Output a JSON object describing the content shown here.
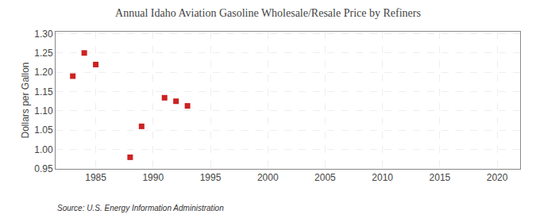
{
  "chart_data": {
    "type": "scatter",
    "title": "Annual Idaho Aviation Gasoline Wholesale/Resale Price by Refiners",
    "ylabel": "Dollars per Gallon",
    "annotations": [
      "Source: U.S. Energy Information Administration"
    ],
    "x": [
      1983,
      1984,
      1985,
      1988,
      1989,
      1991,
      1992,
      1993
    ],
    "values": [
      1.19,
      1.25,
      1.22,
      0.98,
      1.06,
      1.134,
      1.125,
      1.113
    ],
    "color": "#cc2222",
    "marker": "square",
    "xlim": [
      1981.5,
      2022
    ],
    "ylim": [
      0.95,
      1.305
    ],
    "xticks": [
      1985,
      1990,
      1995,
      2000,
      2005,
      2010,
      2015,
      2020
    ],
    "yticks": [
      0.95,
      {
        "value": 1.0,
        "label": "1.00"
      },
      1.05,
      {
        "value": 1.1,
        "label": "1.10"
      },
      1.15,
      {
        "value": 1.2,
        "label": "1.20"
      },
      1.25,
      {
        "value": 1.3,
        "label": "1.30"
      }
    ],
    "grid": true
  }
}
